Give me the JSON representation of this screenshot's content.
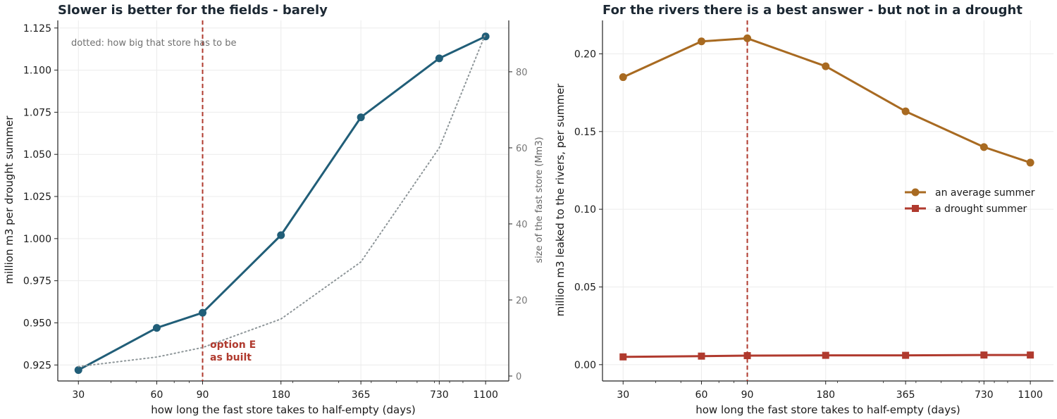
{
  "chart_data": [
    {
      "type": "line",
      "title": "Slower is better for the fields  -  barely",
      "xlabel": "how long the fast store takes to half-empty (days)",
      "ylabel": "million m3 per drought summer",
      "ylabel_right": "size of the fast store (Mm3)",
      "x_scale": "log",
      "x": [
        30,
        60,
        90,
        180,
        365,
        730,
        1100
      ],
      "x_tick_labels": [
        "30",
        "60",
        "90",
        "180",
        "365",
        "730",
        "1100"
      ],
      "xlim": [
        25,
        1350
      ],
      "ylim": [
        0.9155,
        1.1295
      ],
      "y_ticks": [
        0.925,
        0.95,
        0.975,
        1.0,
        1.025,
        1.05,
        1.075,
        1.1,
        1.125
      ],
      "y_tick_labels": [
        "0.925",
        "0.950",
        "0.975",
        "1.000",
        "1.025",
        "1.050",
        "1.075",
        "1.100",
        "1.125"
      ],
      "ylim_right": [
        -1.3,
        93.5
      ],
      "y_ticks_right": [
        0,
        20,
        40,
        60,
        80
      ],
      "y_tick_labels_right": [
        "0",
        "20",
        "40",
        "60",
        "80"
      ],
      "grid": true,
      "series": [
        {
          "values": [
            0.922,
            0.947,
            0.956,
            1.002,
            1.072,
            1.107,
            1.12
          ],
          "color": "#215e78",
          "style": "solid",
          "marker": "circle",
          "axis": "left"
        },
        {
          "values": [
            2.5,
            5,
            7.5,
            15,
            30,
            60,
            90
          ],
          "color": "#8e9699",
          "style": "dotted",
          "marker": "none",
          "axis": "right"
        }
      ],
      "vline": {
        "x": 90,
        "color": "#b03a2e",
        "style": "dashed",
        "label_lines": [
          "option E",
          "as built"
        ]
      },
      "note": "dotted: how big that store has to be"
    },
    {
      "type": "line",
      "title": "For the rivers there is a best answer  -  but not in a drought",
      "xlabel": "how long the fast store takes to half-empty (days)",
      "ylabel": "million m3 leaked to the rivers, per summer",
      "x_scale": "log",
      "x": [
        30,
        60,
        90,
        180,
        365,
        730,
        1100
      ],
      "x_tick_labels": [
        "30",
        "60",
        "90",
        "180",
        "365",
        "730",
        "1100"
      ],
      "xlim": [
        25,
        1350
      ],
      "ylim": [
        -0.0105,
        0.2215
      ],
      "y_ticks": [
        0.0,
        0.05,
        0.1,
        0.15,
        0.2
      ],
      "y_tick_labels": [
        "0.00",
        "0.05",
        "0.10",
        "0.15",
        "0.20"
      ],
      "grid": true,
      "legend_position": "center-right",
      "series": [
        {
          "name": "an average summer",
          "values": [
            0.185,
            0.208,
            0.21,
            0.192,
            0.163,
            0.14,
            0.13
          ],
          "color": "#a86a21",
          "marker": "circle"
        },
        {
          "name": "a drought summer",
          "values": [
            0.005,
            0.0055,
            0.0058,
            0.006,
            0.006,
            0.0062,
            0.0062
          ],
          "color": "#b03a2e",
          "marker": "square"
        }
      ],
      "vline": {
        "x": 90,
        "color": "#b03a2e",
        "style": "dashed"
      }
    }
  ]
}
